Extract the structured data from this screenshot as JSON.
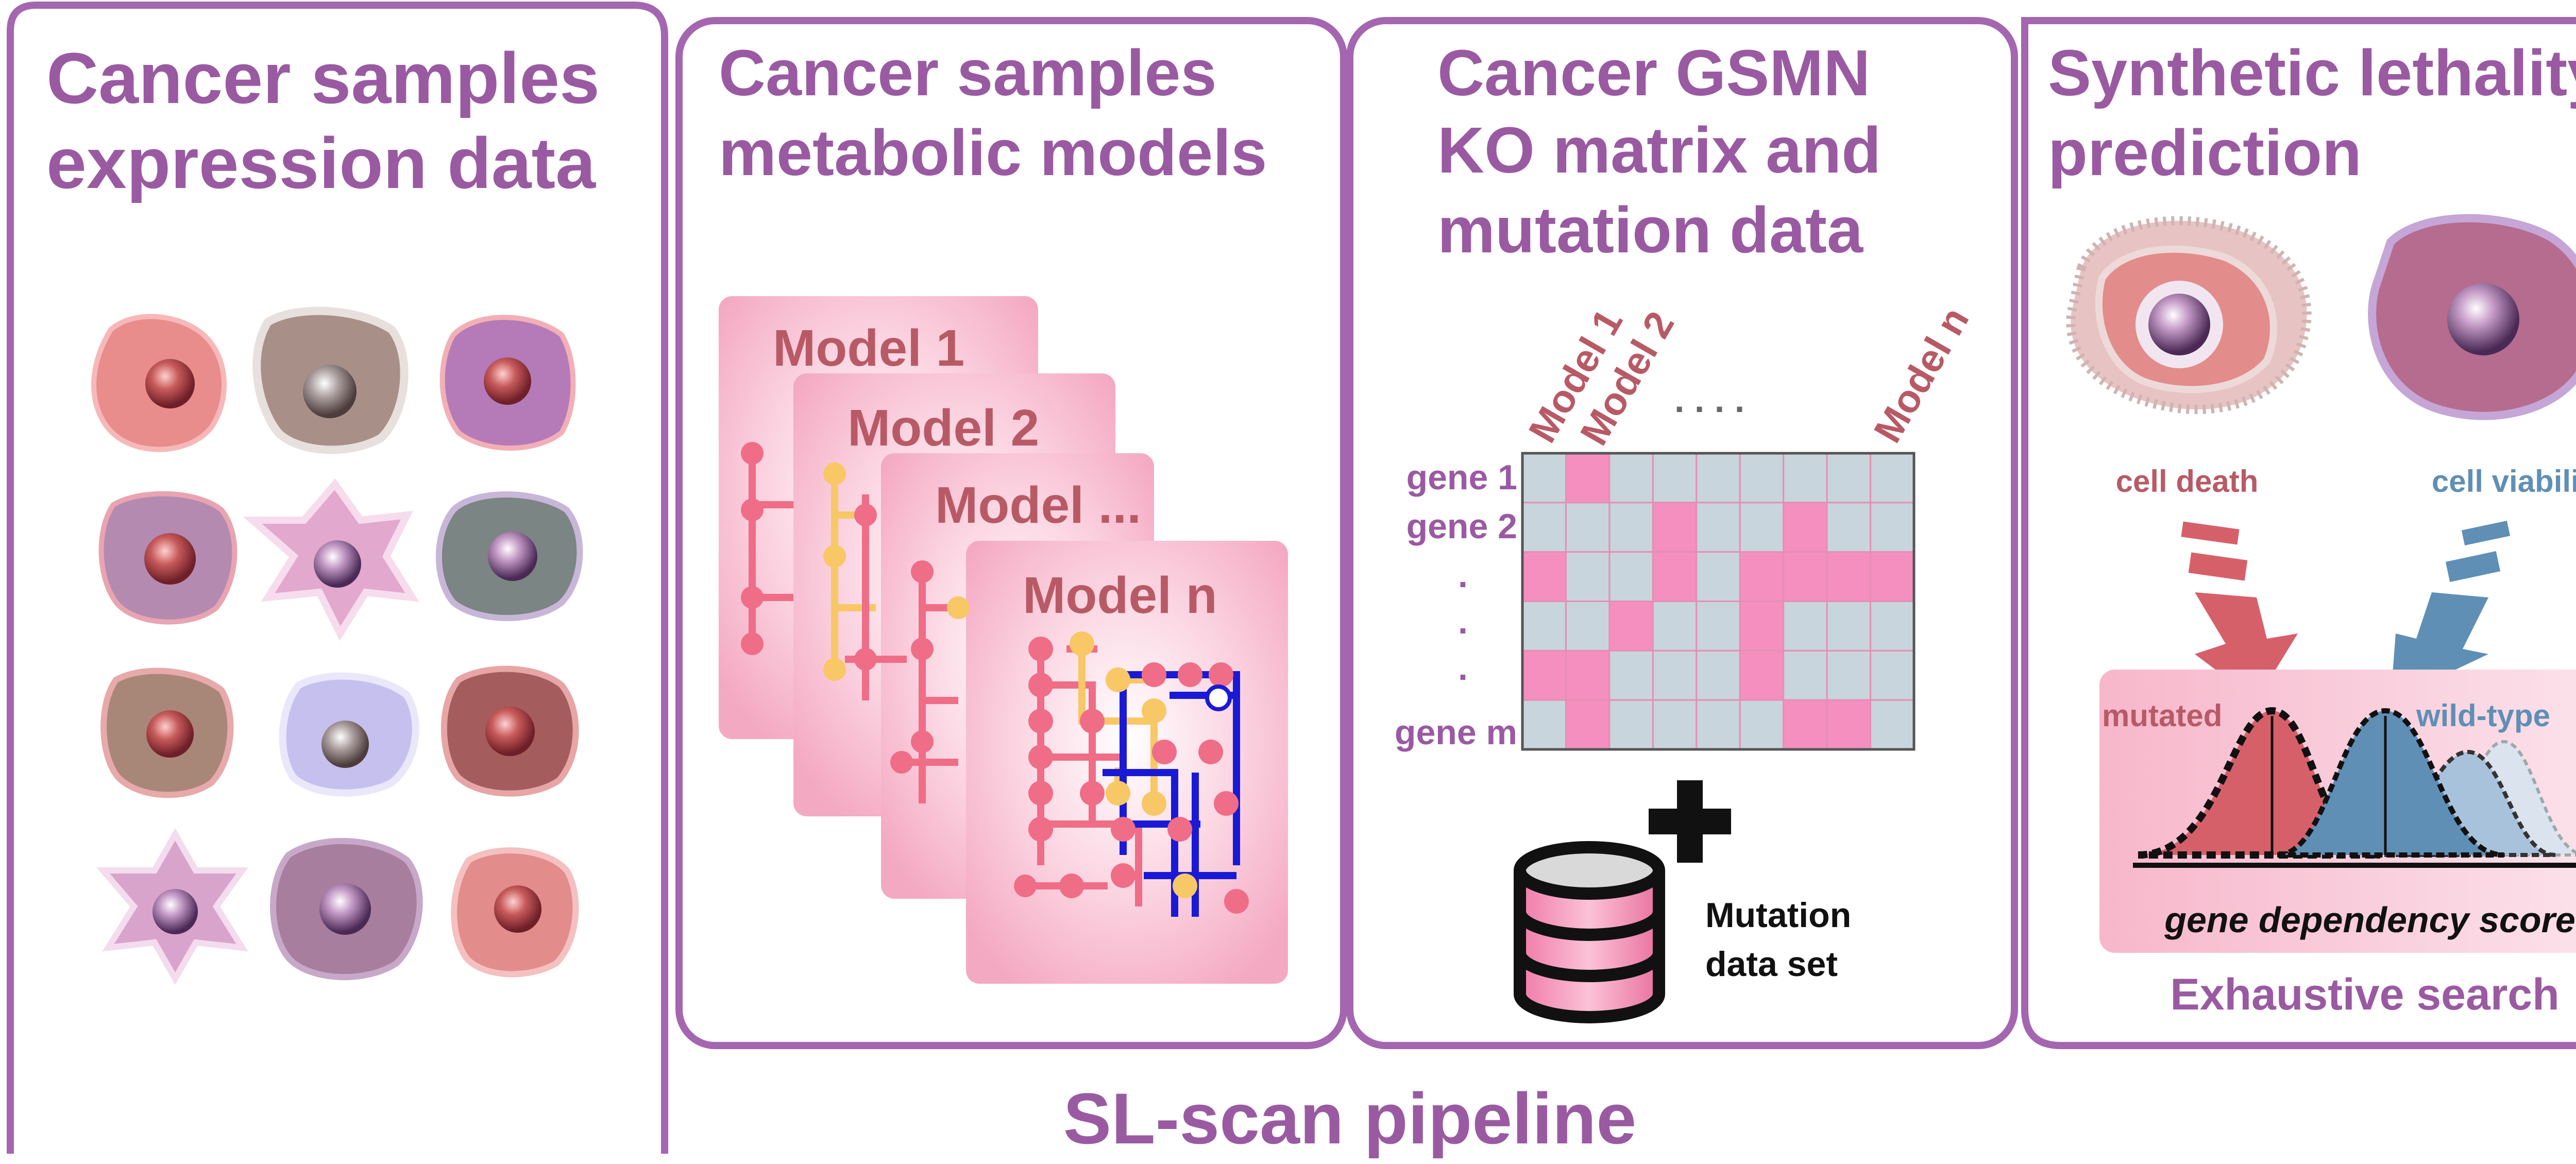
{
  "colors": {
    "panel_border": "#a466b0",
    "title_text": "#9a5aa2",
    "model_label": "#b85a66",
    "matrix_pink": "#f48fbf",
    "matrix_grey": "#c9d5dc",
    "death_red": "#d6606a",
    "viability_blue": "#5f8fb5"
  },
  "panels": [
    {
      "title_lines": [
        "Cancer samples",
        "expression data"
      ]
    },
    {
      "title_lines": [
        "Cancer samples",
        "metabolic models"
      ]
    },
    {
      "title_lines": [
        "Cancer GSMN",
        "KO matrix and",
        "mutation data"
      ]
    },
    {
      "title_lines": [
        "Synthetic lethality",
        "prediction"
      ]
    }
  ],
  "models": {
    "cards": [
      "Model 1",
      "Model 2",
      "Model ...",
      "Model n"
    ]
  },
  "ko_matrix": {
    "column_labels": [
      "Model 1",
      "Model 2",
      "Model n"
    ],
    "column_dots": ". . . .",
    "row_labels": [
      "gene 1",
      "gene 2",
      ".",
      ".",
      "gene m"
    ],
    "pink_cells": [
      [
        0,
        1
      ],
      [
        1,
        3
      ],
      [
        1,
        6
      ],
      [
        2,
        0
      ],
      [
        2,
        3
      ],
      [
        2,
        5
      ],
      [
        2,
        6
      ],
      [
        2,
        7
      ],
      [
        2,
        8
      ],
      [
        3,
        2
      ],
      [
        3,
        5
      ],
      [
        4,
        0
      ],
      [
        4,
        1
      ],
      [
        4,
        5
      ],
      [
        5,
        1
      ],
      [
        5,
        6
      ],
      [
        5,
        7
      ]
    ],
    "rows": 6,
    "cols": 9
  },
  "mutation": {
    "plus": "+",
    "label_lines": [
      "Mutation",
      "data set"
    ]
  },
  "prediction": {
    "cell_death": "cell death",
    "cell_viability": "cell viability",
    "mutated": "mutated",
    "wild_type": "wild-type",
    "axis_label": "gene dependency score",
    "footer": "Exhaustive search"
  },
  "pipeline_title": "SL-scan pipeline"
}
